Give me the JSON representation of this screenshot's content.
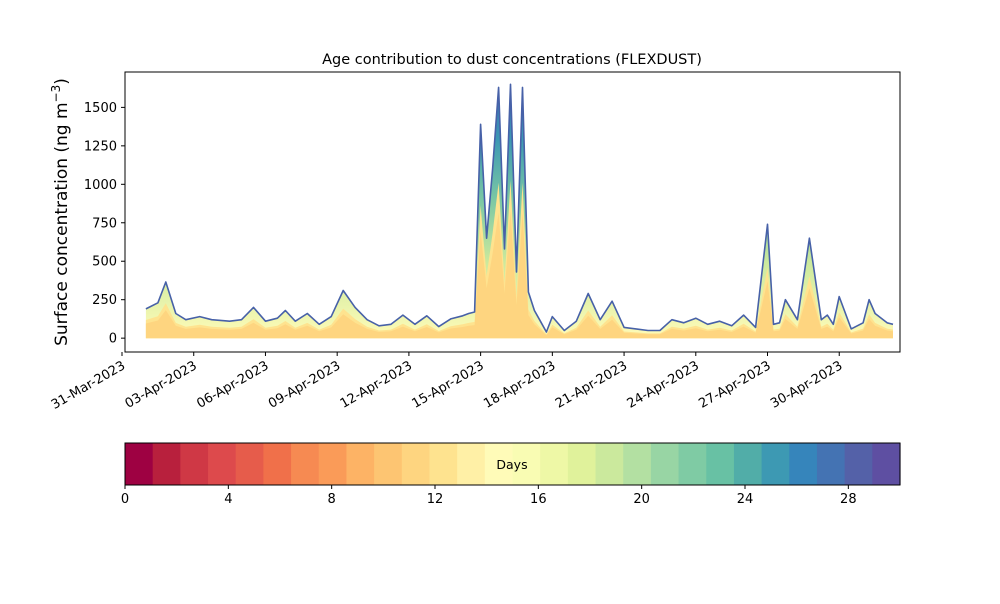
{
  "chart_data": {
    "type": "area",
    "title": "Age contribution to dust concentrations (FLEXDUST)",
    "ylabel": "Surface concentration (ng m",
    "ylabel_exp": "−3",
    "ylabel_close": ")",
    "xlabel": "",
    "ylim": [
      -90,
      1730
    ],
    "xlim": [
      "2023-03-31T03:00",
      "2023-05-02T13:00"
    ],
    "yticks": [
      0,
      250,
      500,
      750,
      1000,
      1250,
      1500
    ],
    "xtick_labels": [
      "31-Mar-2023",
      "03-Apr-2023",
      "06-Apr-2023",
      "09-Apr-2023",
      "12-Apr-2023",
      "15-Apr-2023",
      "18-Apr-2023",
      "21-Apr-2023",
      "24-Apr-2023",
      "27-Apr-2023",
      "30-Apr-2023"
    ],
    "grid": false,
    "stack_bands": 30,
    "total": {
      "dates": [
        "2023-04-01T00:00",
        "2023-04-01T12:00",
        "2023-04-01T20:00",
        "2023-04-02T06:00",
        "2023-04-02T16:00",
        "2023-04-03T06:00",
        "2023-04-03T18:00",
        "2023-04-04T12:00",
        "2023-04-05T00:00",
        "2023-04-05T12:00",
        "2023-04-06T00:00",
        "2023-04-06T12:00",
        "2023-04-06T20:00",
        "2023-04-07T06:00",
        "2023-04-07T18:00",
        "2023-04-08T06:00",
        "2023-04-08T18:00",
        "2023-04-09T06:00",
        "2023-04-09T18:00",
        "2023-04-10T06:00",
        "2023-04-10T18:00",
        "2023-04-11T06:00",
        "2023-04-11T18:00",
        "2023-04-12T06:00",
        "2023-04-12T18:00",
        "2023-04-13T06:00",
        "2023-04-13T18:00",
        "2023-04-14T06:00",
        "2023-04-14T12:00",
        "2023-04-14T18:00",
        "2023-04-15T00:00",
        "2023-04-15T06:00",
        "2023-04-15T12:00",
        "2023-04-15T18:00",
        "2023-04-16T00:00",
        "2023-04-16T06:00",
        "2023-04-16T12:00",
        "2023-04-16T18:00",
        "2023-04-17T00:00",
        "2023-04-17T06:00",
        "2023-04-17T12:00",
        "2023-04-17T18:00",
        "2023-04-18T00:00",
        "2023-04-18T12:00",
        "2023-04-19T00:00",
        "2023-04-19T12:00",
        "2023-04-20T00:00",
        "2023-04-20T12:00",
        "2023-04-21T00:00",
        "2023-04-21T12:00",
        "2023-04-22T00:00",
        "2023-04-22T12:00",
        "2023-04-23T00:00",
        "2023-04-23T12:00",
        "2023-04-24T00:00",
        "2023-04-24T12:00",
        "2023-04-25T00:00",
        "2023-04-25T12:00",
        "2023-04-26T00:00",
        "2023-04-26T12:00",
        "2023-04-27T00:00",
        "2023-04-27T06:00",
        "2023-04-27T12:00",
        "2023-04-27T18:00",
        "2023-04-28T06:00",
        "2023-04-28T18:00",
        "2023-04-29T06:00",
        "2023-04-29T12:00",
        "2023-04-29T18:00",
        "2023-04-30T00:00",
        "2023-04-30T12:00",
        "2023-05-01T00:00",
        "2023-05-01T06:00",
        "2023-05-01T12:00",
        "2023-05-02T00:00",
        "2023-05-02T06:00"
      ],
      "values": [
        190,
        230,
        365,
        160,
        120,
        140,
        120,
        110,
        120,
        200,
        110,
        130,
        180,
        110,
        160,
        90,
        140,
        310,
        200,
        120,
        80,
        90,
        150,
        90,
        145,
        75,
        125,
        145,
        160,
        170,
        1390,
        650,
        1100,
        1630,
        580,
        1650,
        430,
        1630,
        300,
        180,
        110,
        40,
        140,
        50,
        110,
        290,
        120,
        240,
        70,
        60,
        50,
        50,
        120,
        100,
        130,
        90,
        110,
        80,
        150,
        70,
        740,
        90,
        100,
        250,
        120,
        650,
        120,
        150,
        90,
        270,
        60,
        100,
        250,
        160,
        100,
        90
      ]
    },
    "colorbar": {
      "label": "Days",
      "range": [
        0,
        30
      ],
      "ticks": [
        0,
        4,
        8,
        12,
        16,
        20,
        24,
        28
      ],
      "colors": [
        "#9e0142",
        "#b8203d",
        "#cf3845",
        "#dd4a4c",
        "#e65c4b",
        "#f0704a",
        "#f68a52",
        "#fa9b58",
        "#fdb365",
        "#fdc572",
        "#fed580",
        "#fee38f",
        "#fff0a6",
        "#fffbb8",
        "#f9fcb3",
        "#eef8a6",
        "#e0f29b",
        "#cbe99d",
        "#b3e0a2",
        "#98d5a4",
        "#7fcba4",
        "#68c1a4",
        "#51ada8",
        "#3d99b3",
        "#3685bb",
        "#4473b3",
        "#5461a8",
        "#5e4fa2"
      ]
    }
  }
}
